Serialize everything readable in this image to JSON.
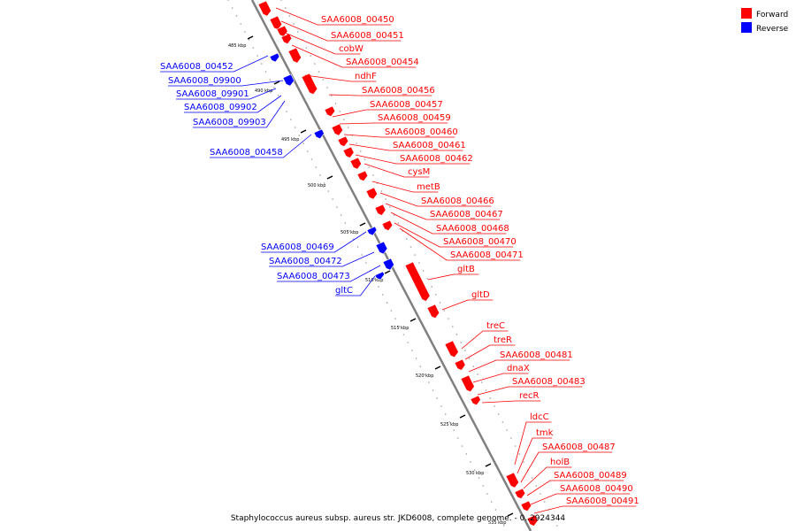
{
  "caption": "Staphylococcus aureus subsp. aureus str. JKD6008, complete genome. - 0..2924344",
  "legend": [
    {
      "label": "Forward",
      "color": "#ff0000"
    },
    {
      "label": "Reverse",
      "color": "#0000ff"
    }
  ],
  "colors": {
    "forward": "#ff0000",
    "reverse": "#0000ff",
    "backbone": "#808080"
  },
  "chart_data": {
    "type": "genome-map",
    "axis_unit": "kbp",
    "ticks": [
      "485 kbp",
      "490 kbp",
      "495 kbp",
      "500 kbp",
      "505 kbp",
      "510 kbp",
      "515 kbp",
      "520 kbp",
      "525 kbp",
      "530 kbp",
      "535 kbp"
    ],
    "forward_labels": [
      "SAA6008_00450",
      "SAA6008_00451",
      "cobW",
      "SAA6008_00454",
      "ndhF",
      "SAA6008_00456",
      "SAA6008_00457",
      "SAA6008_00459",
      "SAA6008_00460",
      "SAA6008_00461",
      "SAA6008_00462",
      "cysM",
      "metB",
      "SAA6008_00466",
      "SAA6008_00467",
      "SAA6008_00468",
      "SAA6008_00470",
      "SAA6008_00471",
      "gltB",
      "gltD",
      "treC",
      "treR",
      "SAA6008_00481",
      "dnaX",
      "SAA6008_00483",
      "recR",
      "ldcC",
      "tmk",
      "SAA6008_00487",
      "holB",
      "SAA6008_00489",
      "SAA6008_00490",
      "SAA6008_00491"
    ],
    "reverse_labels": [
      "SAA6008_00452",
      "SAA6008_09900",
      "SAA6008_09901",
      "SAA6008_09902",
      "SAA6008_09903",
      "SAA6008_00458",
      "SAA6008_00469",
      "SAA6008_00472",
      "SAA6008_00473",
      "gltC"
    ]
  }
}
